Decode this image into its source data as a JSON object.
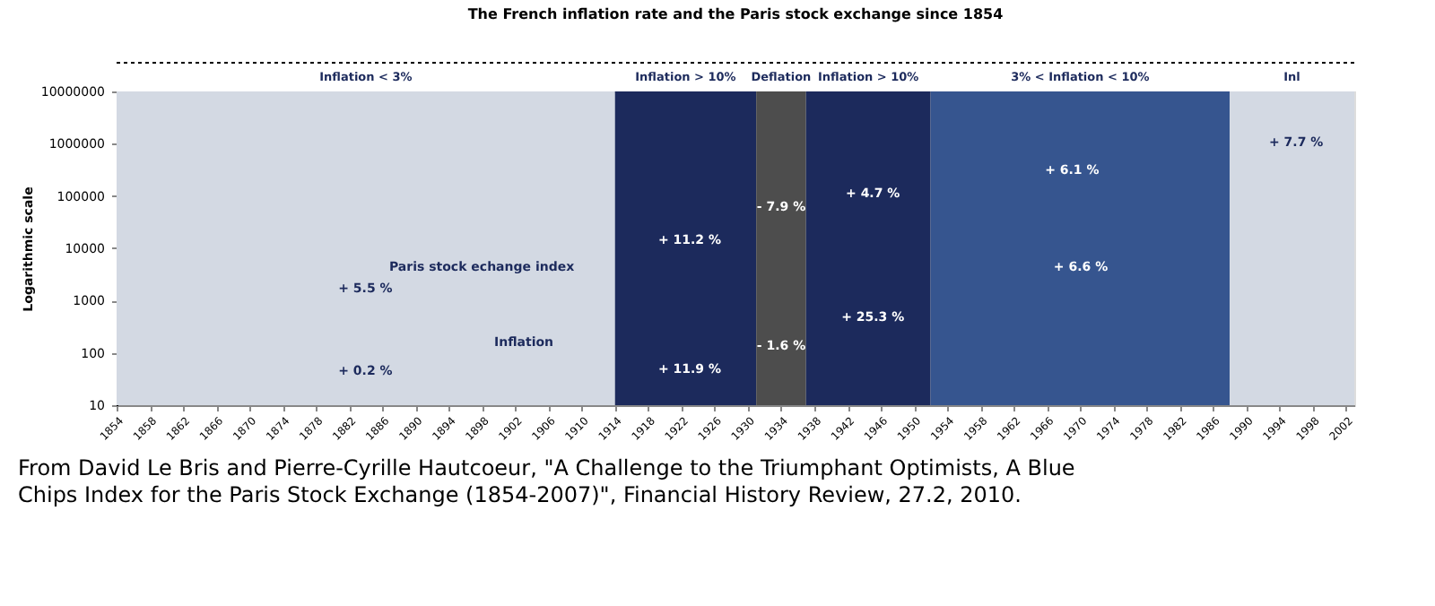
{
  "chart_data": {
    "type": "line",
    "title": "The French inflation rate and the Paris stock exchange since 1854",
    "ylabel": "Logarithmic scale",
    "log": true,
    "xlim": [
      1854,
      2003
    ],
    "xticks": [
      1854,
      1858,
      1862,
      1866,
      1870,
      1874,
      1878,
      1882,
      1886,
      1890,
      1894,
      1898,
      1902,
      1906,
      1910,
      1914,
      1918,
      1922,
      1926,
      1930,
      1934,
      1938,
      1942,
      1946,
      1950,
      1954,
      1958,
      1962,
      1966,
      1970,
      1974,
      1978,
      1982,
      1986,
      1990,
      1994,
      1998,
      2002
    ],
    "ylim": [
      10,
      10000000
    ],
    "yticks": [
      10,
      100,
      1000,
      10000,
      100000,
      1000000,
      10000000
    ],
    "grid": false,
    "bands": [
      {
        "axis": "x",
        "from": 1854,
        "to": 1914,
        "label": "Inflation < 3%",
        "color": "#d3d9e3"
      },
      {
        "axis": "x",
        "from": 1914,
        "to": 1931,
        "label": "Inflation > 10%",
        "color": "#1c2a5c"
      },
      {
        "axis": "x",
        "from": 1931,
        "to": 1937,
        "label": "Deflation",
        "color": "#4d4d4d"
      },
      {
        "axis": "x",
        "from": 1937,
        "to": 1952,
        "label": "Inflation > 10%",
        "color": "#1c2a5c"
      },
      {
        "axis": "x",
        "from": 1952,
        "to": 1988,
        "label": "3% < Inflation < 10%",
        "color": "#36558f"
      },
      {
        "axis": "x",
        "from": 1988,
        "to": 2003,
        "label": "Inl",
        "color": "#d3d9e3"
      }
    ],
    "annotations": [
      "Paris stock echange index",
      "Inflation",
      "+ 5.5 %",
      "+ 0.2 %",
      "+ 11.2 %",
      "+ 11.9 %",
      "- 7.9 %",
      "- 1.6 %",
      "+ 4.7 %",
      "+ 25.3 %",
      "+ 6.1 %",
      "+ 6.6 %",
      "+ 7.7 %",
      "From David Le Bris and Pierre-Cyrille Hautcoeur, \"A Challenge to the Triumphant Optimists, A Blue Chips Index for the Paris Stock Exchange (1854-2007)\", Financial History Review, 27.2, 2010."
    ]
  }
}
